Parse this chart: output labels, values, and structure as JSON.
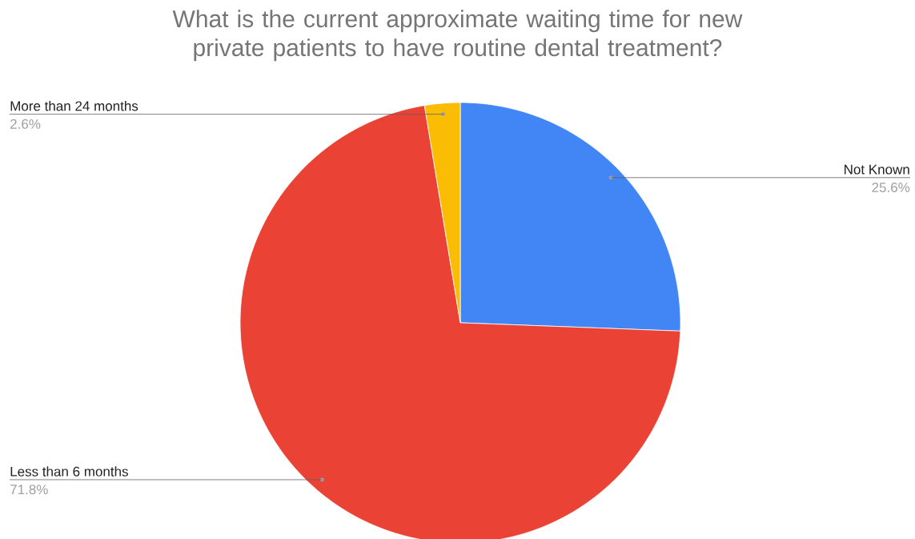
{
  "chart_data": {
    "type": "pie",
    "title": "What is the current approximate waiting time for new private patients to have routine dental treatment?",
    "categories": [
      "Not Known",
      "Less than 6 months",
      "More than 24 months"
    ],
    "values": [
      25.6,
      71.8,
      2.6
    ],
    "colors": [
      "#4285f4",
      "#ea4335",
      "#fbbc04"
    ],
    "value_labels": [
      "25.6%",
      "71.8%",
      "2.6%"
    ]
  }
}
